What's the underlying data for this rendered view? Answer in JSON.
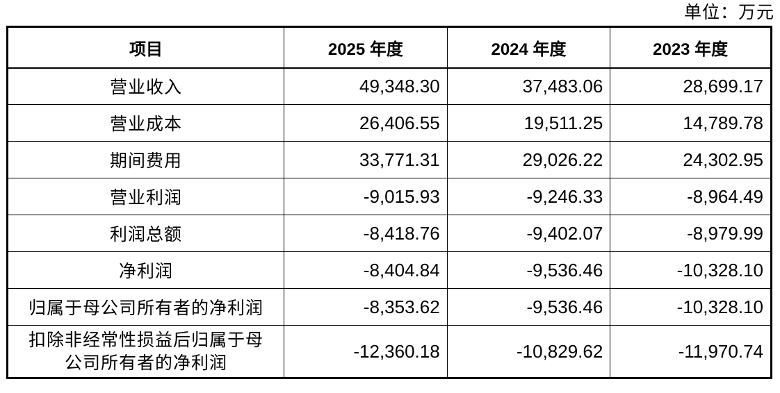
{
  "unit_label": "单位：万元",
  "table": {
    "headers": [
      "项目",
      "2025 年度",
      "2024 年度",
      "2023 年度"
    ],
    "rows": [
      {
        "label": "营业收入",
        "values": [
          "49,348.30",
          "37,483.06",
          "28,699.17"
        ]
      },
      {
        "label": "营业成本",
        "values": [
          "26,406.55",
          "19,511.25",
          "14,789.78"
        ]
      },
      {
        "label": "期间费用",
        "values": [
          "33,771.31",
          "29,026.22",
          "24,302.95"
        ]
      },
      {
        "label": "营业利润",
        "values": [
          "-9,015.93",
          "-9,246.33",
          "-8,964.49"
        ]
      },
      {
        "label": "利润总额",
        "values": [
          "-8,418.76",
          "-9,402.07",
          "-8,979.99"
        ]
      },
      {
        "label": "净利润",
        "values": [
          "-8,404.84",
          "-9,536.46",
          "-10,328.10"
        ]
      },
      {
        "label": "归属于母公司所有者的净利润",
        "values": [
          "-8,353.62",
          "-9,536.46",
          "-10,328.10"
        ]
      },
      {
        "label_line1": "扣除非经常性损益后归属于母",
        "label_line2": "公司所有者的净利润",
        "values": [
          "-12,360.18",
          "-10,829.62",
          "-11,970.74"
        ]
      }
    ]
  }
}
